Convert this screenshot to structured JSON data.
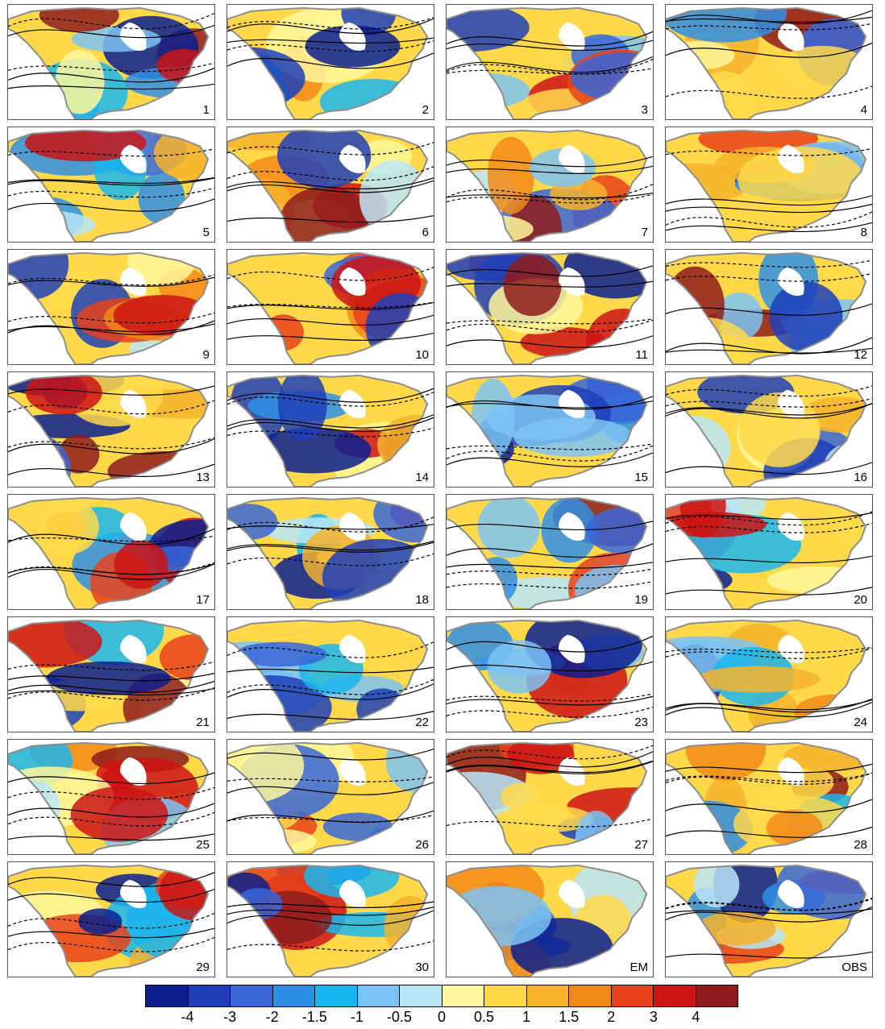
{
  "panel_labels": [
    "1",
    "2",
    "3",
    "4",
    "5",
    "6",
    "7",
    "8",
    "9",
    "10",
    "11",
    "12",
    "13",
    "14",
    "15",
    "16",
    "17",
    "18",
    "19",
    "20",
    "21",
    "22",
    "23",
    "24",
    "25",
    "26",
    "27",
    "28",
    "29",
    "30",
    "EM",
    "OBS"
  ],
  "colorbar": {
    "ticks": [
      "-4",
      "-3",
      "-2",
      "-1.5",
      "-1",
      "-0.5",
      "0",
      "0.5",
      "1",
      "1.5",
      "2",
      "3",
      "4"
    ],
    "colors": [
      "#0b1f8f",
      "#1f3fb8",
      "#3a66d8",
      "#2f8fe8",
      "#1ab6ee",
      "#7cc3f3",
      "#b8e6f8",
      "#fff79a",
      "#ffd94a",
      "#f6b32c",
      "#f28a17",
      "#e8421a",
      "#cc1414",
      "#8e1c1c"
    ]
  }
}
